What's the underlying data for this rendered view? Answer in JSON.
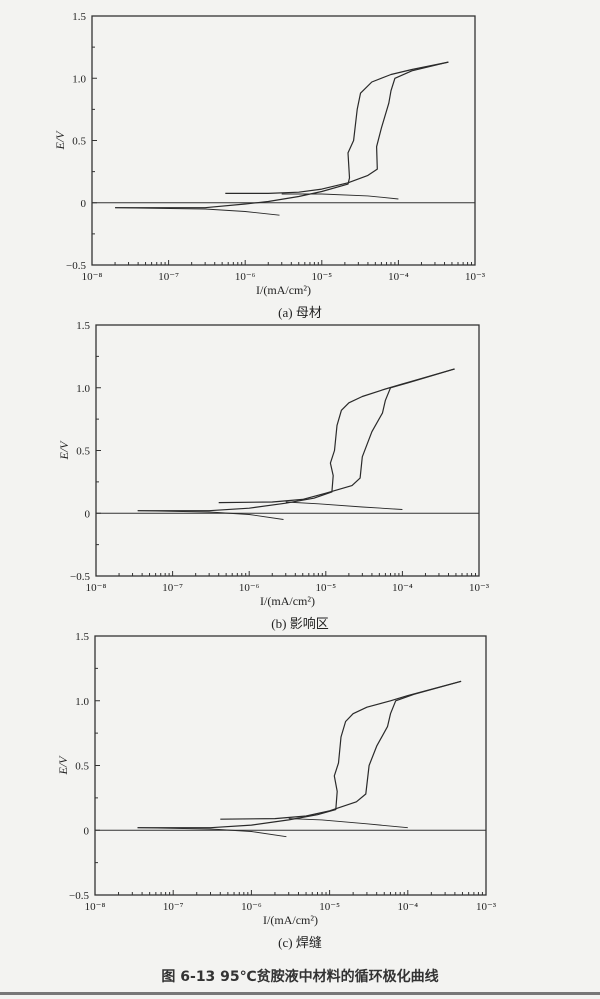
{
  "figure_caption": "图 6-13   95℃贫胺液中材料的循环极化曲线",
  "chart_data": [
    {
      "type": "line",
      "caption": "(a) 母材",
      "xlabel": "I/(mA/cm²)",
      "ylabel": "E/V",
      "xscale": "log",
      "xlim": [
        1e-08,
        0.001
      ],
      "ylim": [
        -0.5,
        1.5
      ],
      "xtick_labels": [
        "10⁻⁸",
        "10⁻⁷",
        "10⁻⁶",
        "10⁻⁵",
        "10⁻⁴",
        "10⁻³"
      ],
      "ytick_labels": [
        "−0.5",
        "0",
        "0.5",
        "1.0",
        "1.5"
      ],
      "yticks": [
        -0.5,
        0,
        0.5,
        1.0,
        1.5
      ],
      "reference_line_E": 0,
      "line_color": "#2a2a2a",
      "series": [
        {
          "points": [
            [
              2.8e-06,
              -0.1
            ],
            [
              1e-06,
              -0.07
            ],
            [
              3e-07,
              -0.05
            ],
            [
              2e-08,
              -0.04
            ]
          ]
        },
        {
          "points": [
            [
              2e-08,
              -0.04
            ],
            [
              3e-07,
              -0.04
            ],
            [
              1e-06,
              -0.01
            ],
            [
              2e-06,
              0.01
            ],
            [
              5e-06,
              0.05
            ],
            [
              1e-05,
              0.09
            ],
            [
              2.2e-05,
              0.15
            ],
            [
              2.3e-05,
              0.2
            ],
            [
              2.2e-05,
              0.4
            ],
            [
              2.6e-05,
              0.5
            ],
            [
              2.9e-05,
              0.75
            ],
            [
              3.2e-05,
              0.88
            ],
            [
              4.5e-05,
              0.97
            ],
            [
              8e-05,
              1.03
            ],
            [
              0.00015,
              1.07
            ],
            [
              0.00045,
              1.13
            ]
          ]
        },
        {
          "points": [
            [
              0.00045,
              1.13
            ],
            [
              0.00015,
              1.06
            ],
            [
              9e-05,
              1.0
            ],
            [
              8e-05,
              0.9
            ],
            [
              7.5e-05,
              0.8
            ],
            [
              6e-05,
              0.6
            ],
            [
              5.2e-05,
              0.45
            ],
            [
              5.3e-05,
              0.27
            ],
            [
              4e-05,
              0.22
            ],
            [
              2.2e-05,
              0.16
            ],
            [
              1e-05,
              0.11
            ],
            [
              5e-06,
              0.085
            ],
            [
              2e-06,
              0.075
            ],
            [
              5.5e-07,
              0.075
            ]
          ]
        },
        {
          "points": [
            [
              3e-06,
              0.07
            ],
            [
              1e-05,
              0.07
            ],
            [
              4e-05,
              0.055
            ],
            [
              0.0001,
              0.03
            ]
          ]
        }
      ]
    },
    {
      "type": "line",
      "caption": "(b) 影响区",
      "xlabel": "I/(mA/cm²)",
      "ylabel": "E/V",
      "xscale": "log",
      "xlim": [
        1e-08,
        0.001
      ],
      "ylim": [
        -0.5,
        1.5
      ],
      "xtick_labels": [
        "10⁻⁸",
        "10⁻⁷",
        "10⁻⁶",
        "10⁻⁵",
        "10⁻⁴",
        "10⁻³"
      ],
      "ytick_labels": [
        "−0.5",
        "0",
        "0.5",
        "1.0",
        "1.5"
      ],
      "yticks": [
        -0.5,
        0,
        0.5,
        1.0,
        1.5
      ],
      "reference_line_E": 0,
      "line_color": "#2a2a2a",
      "series": [
        {
          "points": [
            [
              2.8e-06,
              -0.05
            ],
            [
              1e-06,
              -0.01
            ],
            [
              3e-07,
              0.01
            ],
            [
              3.5e-08,
              0.02
            ]
          ]
        },
        {
          "points": [
            [
              3.5e-08,
              0.02
            ],
            [
              3e-07,
              0.02
            ],
            [
              1e-06,
              0.04
            ],
            [
              3e-06,
              0.08
            ],
            [
              7e-06,
              0.12
            ],
            [
              1.2e-05,
              0.17
            ],
            [
              1.25e-05,
              0.3
            ],
            [
              1.15e-05,
              0.4
            ],
            [
              1.3e-05,
              0.5
            ],
            [
              1.4e-05,
              0.7
            ],
            [
              1.6e-05,
              0.82
            ],
            [
              2e-05,
              0.88
            ],
            [
              3e-05,
              0.93
            ],
            [
              6e-05,
              0.99
            ],
            [
              0.0001,
              1.03
            ],
            [
              0.00048,
              1.15
            ]
          ]
        },
        {
          "points": [
            [
              0.00048,
              1.15
            ],
            [
              0.00012,
              1.04
            ],
            [
              7e-05,
              1.0
            ],
            [
              6e-05,
              0.9
            ],
            [
              5.5e-05,
              0.8
            ],
            [
              4e-05,
              0.65
            ],
            [
              3e-05,
              0.45
            ],
            [
              2.8e-05,
              0.28
            ],
            [
              2.2e-05,
              0.22
            ],
            [
              1e-05,
              0.16
            ],
            [
              5e-06,
              0.11
            ],
            [
              2e-06,
              0.09
            ],
            [
              4e-07,
              0.085
            ]
          ]
        },
        {
          "points": [
            [
              3e-06,
              0.09
            ],
            [
              8e-06,
              0.075
            ],
            [
              3e-05,
              0.05
            ],
            [
              0.0001,
              0.03
            ]
          ]
        }
      ]
    },
    {
      "type": "line",
      "caption": "(c) 焊缝",
      "xlabel": "I/(mA/cm²)",
      "ylabel": "E/V",
      "xscale": "log",
      "xlim": [
        1e-08,
        0.001
      ],
      "ylim": [
        -0.5,
        1.5
      ],
      "xtick_labels": [
        "10⁻⁸",
        "10⁻⁷",
        "10⁻⁶",
        "10⁻⁵",
        "10⁻⁴",
        "10⁻³"
      ],
      "ytick_labels": [
        "−0.5",
        "0",
        "0.5",
        "1.0",
        "1.5"
      ],
      "yticks": [
        -0.5,
        0,
        0.5,
        1.0,
        1.5
      ],
      "reference_line_E": 0,
      "line_color": "#2a2a2a",
      "series": [
        {
          "points": [
            [
              2.8e-06,
              -0.05
            ],
            [
              1e-06,
              -0.01
            ],
            [
              3e-07,
              0.01
            ],
            [
              3.5e-08,
              0.02
            ]
          ]
        },
        {
          "points": [
            [
              3.5e-08,
              0.02
            ],
            [
              3e-07,
              0.02
            ],
            [
              1e-06,
              0.04
            ],
            [
              3e-06,
              0.08
            ],
            [
              7e-06,
              0.12
            ],
            [
              1.2e-05,
              0.16
            ],
            [
              1.25e-05,
              0.3
            ],
            [
              1.15e-05,
              0.42
            ],
            [
              1.3e-05,
              0.52
            ],
            [
              1.4e-05,
              0.72
            ],
            [
              1.6e-05,
              0.84
            ],
            [
              2e-05,
              0.9
            ],
            [
              3e-05,
              0.95
            ],
            [
              6e-05,
              1.0
            ],
            [
              0.0001,
              1.04
            ],
            [
              0.00048,
              1.15
            ]
          ]
        },
        {
          "points": [
            [
              0.00048,
              1.15
            ],
            [
              0.00012,
              1.05
            ],
            [
              7e-05,
              1.0
            ],
            [
              6e-05,
              0.9
            ],
            [
              5.5e-05,
              0.8
            ],
            [
              4e-05,
              0.65
            ],
            [
              3.2e-05,
              0.5
            ],
            [
              2.9e-05,
              0.28
            ],
            [
              2.2e-05,
              0.22
            ],
            [
              1e-05,
              0.15
            ],
            [
              5e-06,
              0.11
            ],
            [
              2e-06,
              0.09
            ],
            [
              4e-07,
              0.085
            ]
          ]
        },
        {
          "points": [
            [
              3e-06,
              0.09
            ],
            [
              8e-06,
              0.08
            ],
            [
              3e-05,
              0.05
            ],
            [
              0.0001,
              0.02
            ]
          ]
        }
      ]
    }
  ]
}
